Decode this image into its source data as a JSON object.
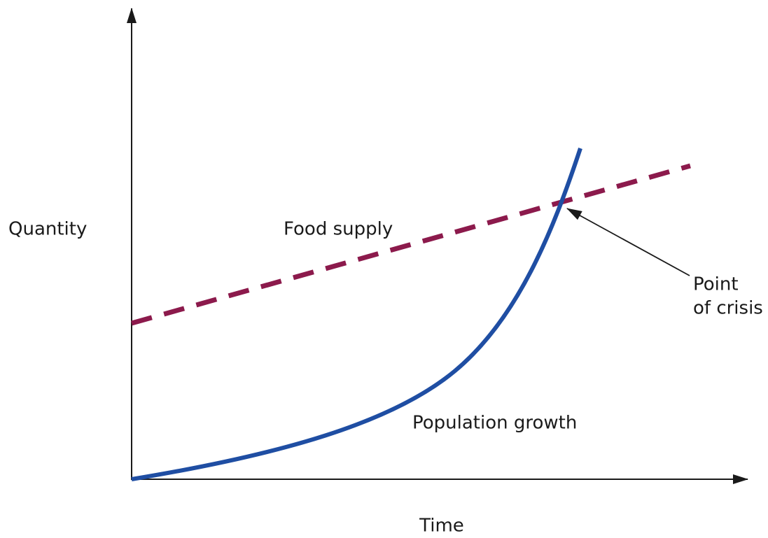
{
  "axes": {
    "y_label": "Quantity",
    "x_label": "Time"
  },
  "curves": {
    "food_supply": "Food supply",
    "population_growth": "Population growth"
  },
  "annotation": {
    "lines": [
      "Point",
      "of crisis"
    ]
  }
}
